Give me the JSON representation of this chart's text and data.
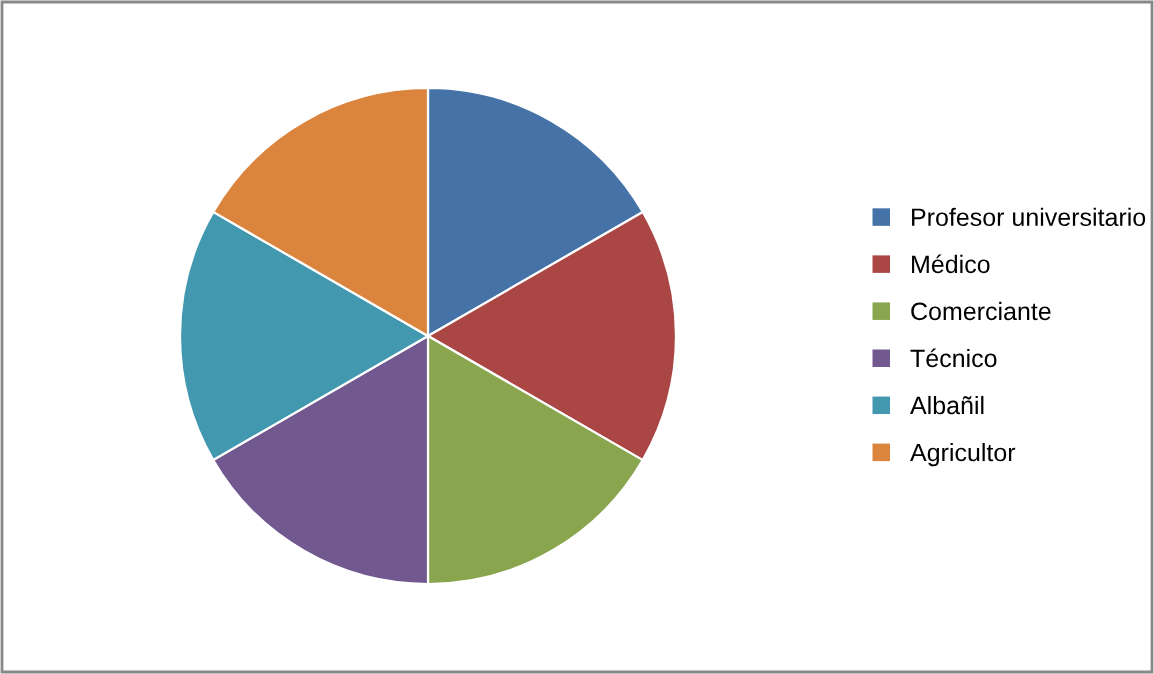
{
  "chart_data": {
    "type": "pie",
    "categories": [
      "Profesor universitario",
      "Médico",
      "Comerciante",
      "Técnico",
      "Albañil",
      "Agricultor"
    ],
    "values": [
      16.67,
      16.67,
      16.66,
      16.67,
      16.67,
      16.66
    ],
    "colors": [
      "#4572a7",
      "#aa4643",
      "#89a54e",
      "#71588f",
      "#4198af",
      "#db843d"
    ],
    "legend": "right"
  }
}
